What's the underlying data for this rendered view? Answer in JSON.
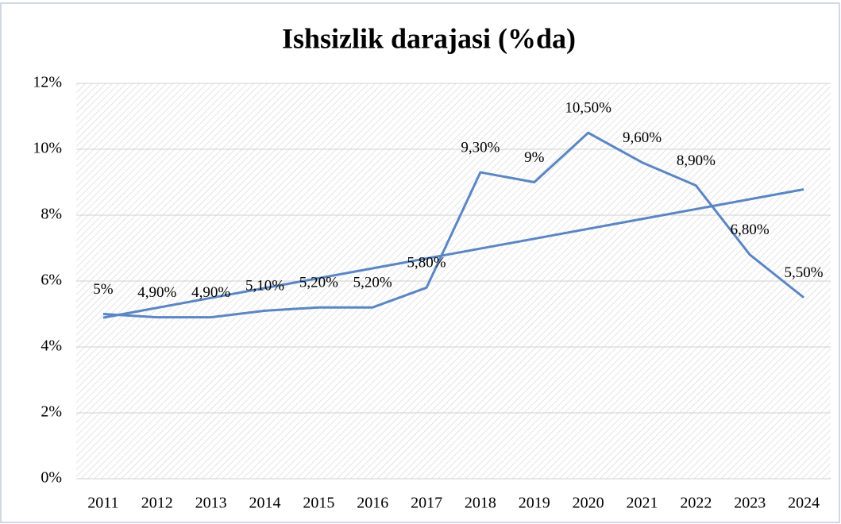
{
  "chart_data": {
    "type": "line",
    "title": "Ishsizlik darajasi (%da)",
    "categories": [
      "2011",
      "2012",
      "2013",
      "2014",
      "2015",
      "2016",
      "2017",
      "2018",
      "2019",
      "2020",
      "2021",
      "2022",
      "2023",
      "2024"
    ],
    "values": [
      5,
      4.9,
      4.9,
      5.1,
      5.2,
      5.2,
      5.8,
      9.3,
      9,
      10.5,
      9.6,
      8.9,
      6.8,
      5.5
    ],
    "value_labels": [
      "5%",
      "4,90%",
      "4,90%",
      "5,10%",
      "5,20%",
      "5,20%",
      "5,80%",
      "9,30%",
      "9%",
      "10,50%",
      "9,60%",
      "8,90%",
      "6,80%",
      "5,50%"
    ],
    "color": "#5b86c2",
    "trendline": "linear",
    "ylim": [
      0,
      12
    ],
    "yticks": [
      {
        "value": 0,
        "label": "0%"
      },
      {
        "value": 2,
        "label": "2%"
      },
      {
        "value": 4,
        "label": "4%"
      },
      {
        "value": 6,
        "label": "6%"
      },
      {
        "value": 8,
        "label": "8%"
      },
      {
        "value": 10,
        "label": "10%"
      },
      {
        "value": 12,
        "label": "12%"
      }
    ],
    "grid": true
  }
}
